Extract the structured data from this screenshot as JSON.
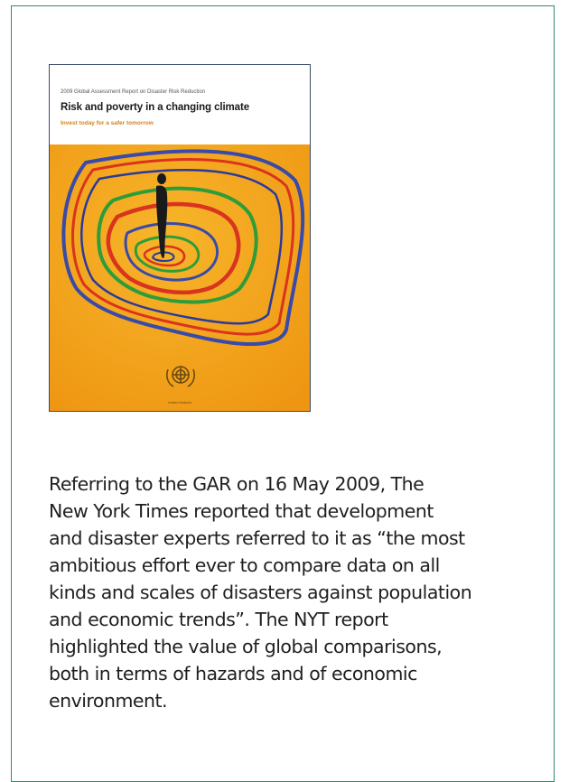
{
  "cover": {
    "supertitle": "2009 Global Assessment Report on Disaster Risk Reduction",
    "title": "Risk and poverty in a changing climate",
    "subtitle": "Invest today for a safer tomorrow",
    "publisher": "United Nations",
    "colors": {
      "background": "#f2a019",
      "accent": "#d8801a"
    },
    "emblem_icon": "un-emblem-icon"
  },
  "body": {
    "lines": [
      "Referring to the GAR on 16 May 2009, The",
      "New York Times reported that development",
      "and disaster experts referred to it as “the most",
      "ambitious effort ever to compare data on all",
      "kinds and scales of disasters against population",
      "and economic trends”. The NYT report",
      "highlighted the value of global comparisons,",
      "both in terms of hazards and of economic",
      "environment."
    ]
  },
  "frame": {
    "border_color": "#2e8b6a"
  }
}
